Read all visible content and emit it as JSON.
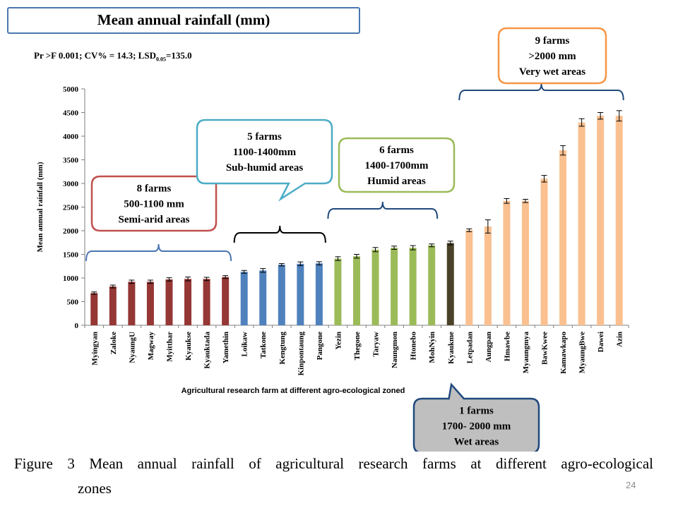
{
  "slide": {
    "title": "Mean annual rainfall (mm)",
    "stats_prefix": "Pr >F 0.001; CV% = 14.3; LSD",
    "stats_sub": "0.05",
    "stats_suffix": "=135.0",
    "caption_line1": "Figure 3 Mean annual rainfall of agricultural research farms at different agro-ecological",
    "caption_line2": "zones",
    "page_number": "24"
  },
  "chart_data": {
    "type": "bar",
    "ylabel": "Mean annual rainfall (mm)",
    "xlabel": "Agricultural research farm at different agro-ecological zoned",
    "ylim": [
      0,
      5000
    ],
    "yticks": [
      0,
      500,
      1000,
      1500,
      2000,
      2500,
      3000,
      3500,
      4000,
      4500,
      5000
    ],
    "categories": [
      "Myingyan",
      "Zaloke",
      "NyaungU",
      "Magway",
      "Myitthar",
      "Kyaukse",
      "Kyauktada",
      "Yamethin",
      "Loikaw",
      "Tatkone",
      "Kengtung",
      "Kinpontaung",
      "Pangone",
      "Yezin",
      "Thegone",
      "Taryaw",
      "Naungmon",
      "Htonebo",
      "MohNyin",
      "Kyaukme",
      "Letpadan",
      "Aungpan",
      "Hmawbe",
      "Myaungmya",
      "BawKwee",
      "Kamawkapo",
      "MyaungBwe",
      "Dawei",
      "Azin"
    ],
    "values": [
      680,
      820,
      920,
      920,
      970,
      980,
      980,
      1020,
      1130,
      1160,
      1280,
      1300,
      1310,
      1410,
      1460,
      1600,
      1640,
      1640,
      1690,
      1740,
      2010,
      2090,
      2630,
      2630,
      3100,
      3700,
      4290,
      4430,
      4430
    ],
    "errors": [
      25,
      30,
      35,
      35,
      35,
      40,
      35,
      30,
      30,
      40,
      25,
      40,
      35,
      40,
      40,
      45,
      35,
      45,
      30,
      40,
      30,
      140,
      50,
      35,
      70,
      100,
      80,
      70,
      110
    ],
    "grid": false,
    "legend": "none",
    "zones": [
      {
        "name": "Semi-arid areas",
        "start": 0,
        "end": 7,
        "color": "#953735",
        "lines": [
          "8 farms",
          "500-1100 mm",
          "Semi-arid  areas"
        ],
        "border": "#c0504d",
        "fill": "#ffffff",
        "bracket_color": "#4a76b0"
      },
      {
        "name": "Sub-humid areas",
        "start": 8,
        "end": 12,
        "color": "#4f81bd",
        "lines": [
          "5 farms",
          "1100-1400mm",
          "Sub-humid  areas"
        ],
        "border": "#4bacc6",
        "fill": "#ffffff",
        "bracket_color": "#000000"
      },
      {
        "name": "Humid areas",
        "start": 13,
        "end": 18,
        "color": "#9bbb59",
        "lines": [
          "6 farms",
          "1400-1700mm",
          "Humid  areas"
        ],
        "border": "#9bbb59",
        "fill": "#ffffff",
        "bracket_color": "#1f497d"
      },
      {
        "name": "Wet areas",
        "start": 19,
        "end": 19,
        "color": "#4a4228",
        "lines": [
          "1 farms",
          "1700- 2000 mm",
          "Wet areas"
        ],
        "border": "#1f497d",
        "fill": "#bfbfbf",
        "bracket_color": "#1f497d"
      },
      {
        "name": "Very wet areas",
        "start": 20,
        "end": 28,
        "color": "#fac090",
        "lines": [
          "9 farms",
          ">2000 mm",
          "Very wet areas"
        ],
        "border": "#f79646",
        "fill": "#ffffff",
        "bracket_color": "#1f497d"
      }
    ]
  }
}
